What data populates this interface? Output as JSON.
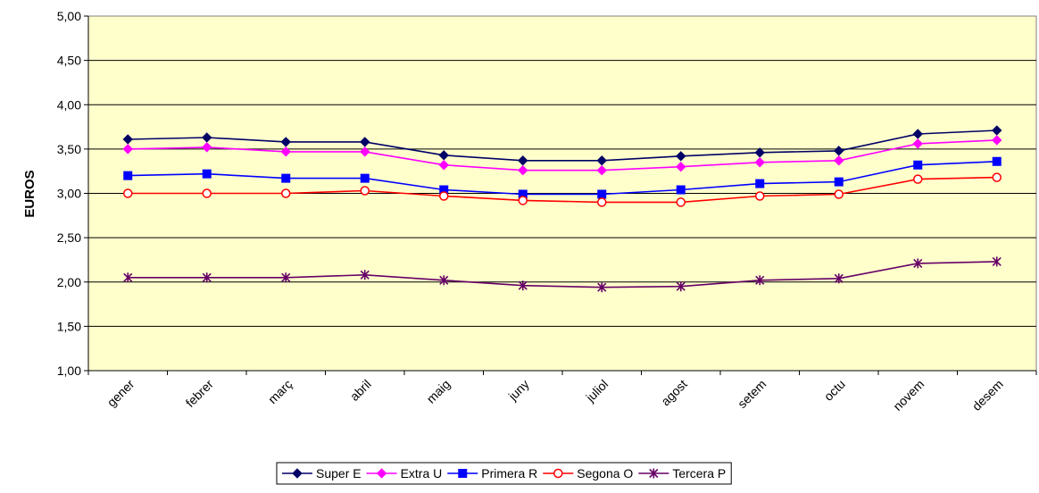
{
  "chart_data": {
    "type": "line",
    "title": "",
    "xlabel": "",
    "ylabel": "EUROS",
    "ylim": [
      1.0,
      5.0
    ],
    "yticks": [
      "1,00",
      "1,50",
      "2,00",
      "2,50",
      "3,00",
      "3,50",
      "4,00",
      "4,50",
      "5,00"
    ],
    "ytick_values": [
      1.0,
      1.5,
      2.0,
      2.5,
      3.0,
      3.5,
      4.0,
      4.5,
      5.0
    ],
    "grid": "horizontal",
    "legend_position": "bottom",
    "plot_background": "#FFFFCC",
    "categories": [
      "gener",
      "febrer",
      "març",
      "abril",
      "maig",
      "juny",
      "juliol",
      "agost",
      "setem",
      "octu",
      "novem",
      "desem"
    ],
    "series": [
      {
        "name": "Super E",
        "color": "#000066",
        "marker": "diamond",
        "values": [
          3.61,
          3.63,
          3.58,
          3.58,
          3.43,
          3.37,
          3.37,
          3.42,
          3.46,
          3.48,
          3.67,
          3.71
        ]
      },
      {
        "name": "Extra U",
        "color": "#FF00FF",
        "marker": "diamond",
        "values": [
          3.5,
          3.52,
          3.47,
          3.47,
          3.32,
          3.26,
          3.26,
          3.3,
          3.35,
          3.37,
          3.56,
          3.6
        ]
      },
      {
        "name": "Primera R",
        "color": "#0000FF",
        "marker": "square",
        "values": [
          3.2,
          3.22,
          3.17,
          3.17,
          3.04,
          2.99,
          2.99,
          3.04,
          3.11,
          3.13,
          3.32,
          3.36
        ]
      },
      {
        "name": "Segona O",
        "color": "#FF0000",
        "marker": "circle",
        "values": [
          3.0,
          3.0,
          3.0,
          3.03,
          2.97,
          2.92,
          2.9,
          2.9,
          2.97,
          2.99,
          3.16,
          3.18
        ]
      },
      {
        "name": "Tercera P",
        "color": "#660066",
        "marker": "asterisk",
        "values": [
          2.05,
          2.05,
          2.05,
          2.08,
          2.02,
          1.96,
          1.94,
          1.95,
          2.02,
          2.04,
          2.21,
          2.23
        ]
      }
    ]
  }
}
